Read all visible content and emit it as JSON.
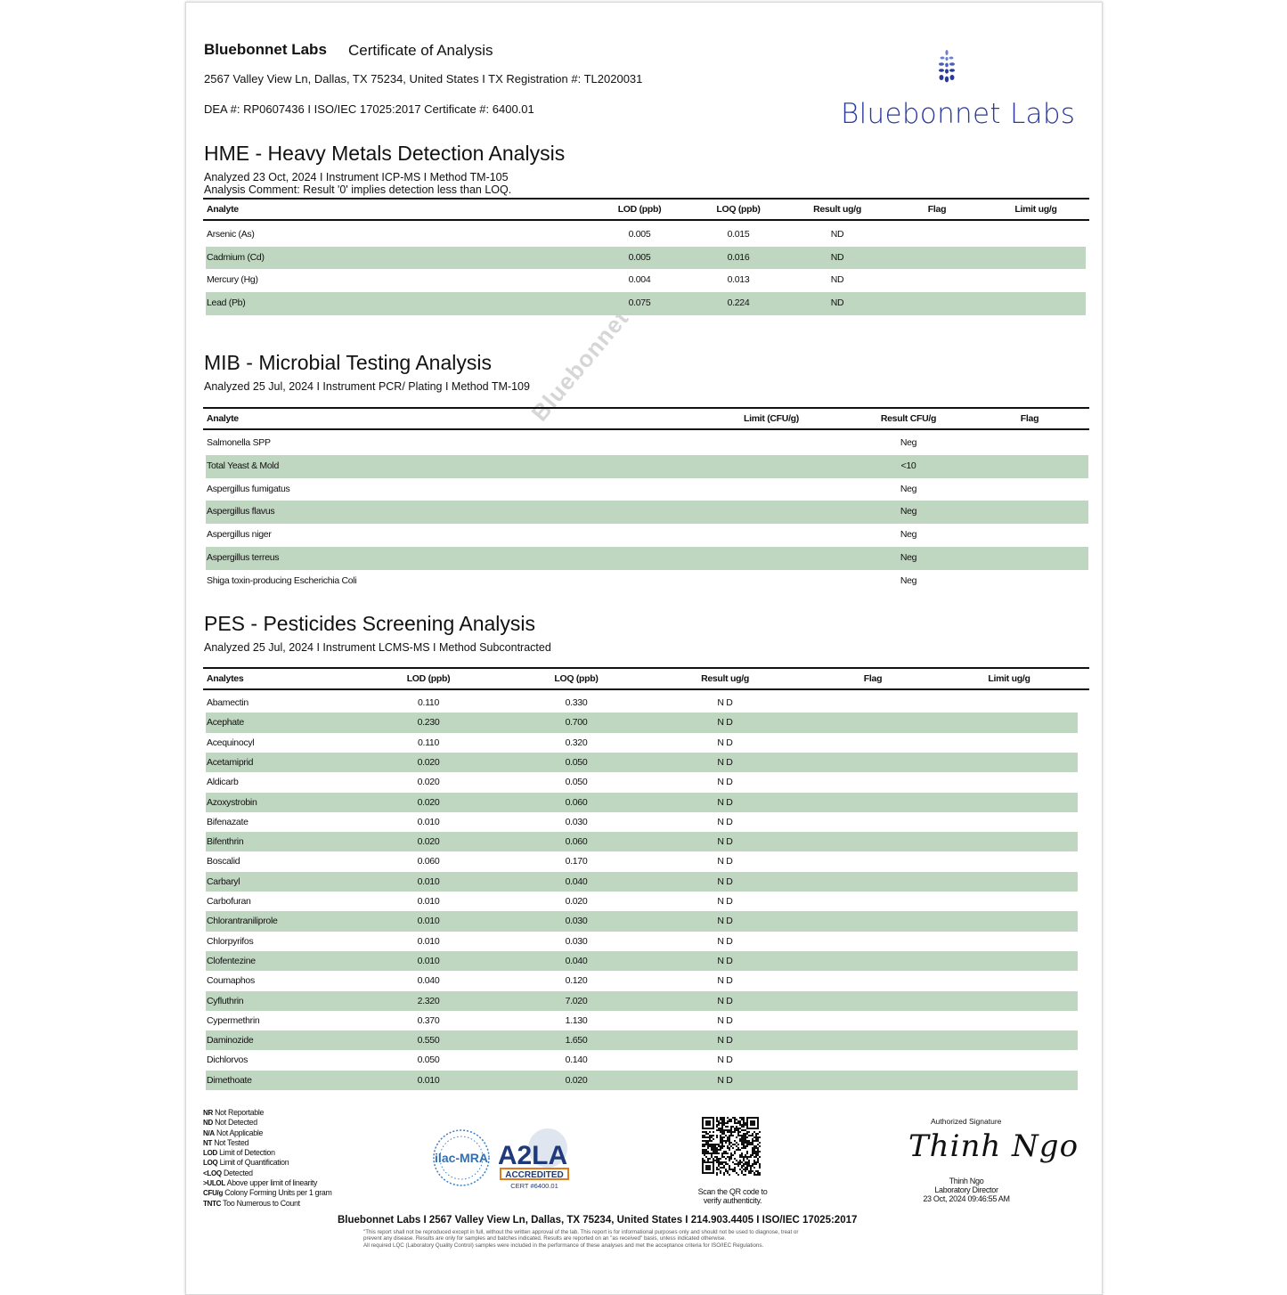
{
  "header": {
    "lab_name": "Bluebonnet Labs",
    "doc_title": "Certificate of Analysis",
    "address_line": "2567 Valley View Ln, Dallas, TX 75234, United States I TX Registration #: TL2020031",
    "dea_line": "DEA #: RP0607436 I ISO/IEC 17025:2017 Certificate #: 6400.01",
    "logo_text": "Bluebonnet Labs"
  },
  "colors": {
    "row_highlight": "#bfd6c0",
    "logo_blue": "#2a3a9c"
  },
  "watermark": "Bluebonnet",
  "hme": {
    "title": "HME - Heavy Metals Detection Analysis",
    "meta": "Analyzed 23 Oct, 2024 I Instrument ICP-MS I Method TM-105",
    "comment": "Analysis Comment: Result '0' implies detection less than LOQ.",
    "columns": [
      "Analyte",
      "LOD (ppb)",
      "LOQ (ppb)",
      "Result ug/g",
      "Flag",
      "Limit ug/g"
    ],
    "rows": [
      [
        "Arsenic (As)",
        "0.005",
        "0.015",
        "ND",
        "",
        ""
      ],
      [
        "Cadmium (Cd)",
        "0.005",
        "0.016",
        "ND",
        "",
        ""
      ],
      [
        "Mercury (Hg)",
        "0.004",
        "0.013",
        "ND",
        "",
        ""
      ],
      [
        "Lead (Pb)",
        "0.075",
        "0.224",
        "ND",
        "",
        ""
      ]
    ]
  },
  "mib": {
    "title": "MIB - Microbial Testing Analysis",
    "meta": "Analyzed 25 Jul, 2024 I Instrument PCR/ Plating I Method TM-109",
    "columns": [
      "Analyte",
      "Limit (CFU/g)",
      "Result CFU/g",
      "Flag"
    ],
    "rows": [
      [
        "Salmonella SPP",
        "",
        "Neg",
        ""
      ],
      [
        "Total Yeast & Mold",
        "",
        "<10",
        ""
      ],
      [
        "Aspergillus fumigatus",
        "",
        "Neg",
        ""
      ],
      [
        "Aspergillus flavus",
        "",
        "Neg",
        ""
      ],
      [
        "Aspergillus niger",
        "",
        "Neg",
        ""
      ],
      [
        "Aspergillus terreus",
        "",
        "Neg",
        ""
      ],
      [
        "Shiga toxin-producing Escherichia Coli",
        "",
        "Neg",
        ""
      ]
    ]
  },
  "pes": {
    "title": "PES - Pesticides Screening Analysis",
    "meta": "Analyzed 25 Jul, 2024 I Instrument LCMS-MS I Method Subcontracted",
    "columns": [
      "Analytes",
      "LOD (ppb)",
      "LOQ (ppb)",
      "Result ug/g",
      "Flag",
      "Limit ug/g"
    ],
    "rows": [
      [
        "Abamectin",
        "0.110",
        "0.330",
        "N D",
        "",
        ""
      ],
      [
        "Acephate",
        "0.230",
        "0.700",
        "N D",
        "",
        ""
      ],
      [
        "Acequinocyl",
        "0.110",
        "0.320",
        "N D",
        "",
        ""
      ],
      [
        "Acetamiprid",
        "0.020",
        "0.050",
        "N D",
        "",
        ""
      ],
      [
        "Aldicarb",
        "0.020",
        "0.050",
        "N D",
        "",
        ""
      ],
      [
        "Azoxystrobin",
        "0.020",
        "0.060",
        "N D",
        "",
        ""
      ],
      [
        "Bifenazate",
        "0.010",
        "0.030",
        "N D",
        "",
        ""
      ],
      [
        "Bifenthrin",
        "0.020",
        "0.060",
        "N D",
        "",
        ""
      ],
      [
        "Boscalid",
        "0.060",
        "0.170",
        "N D",
        "",
        ""
      ],
      [
        "Carbaryl",
        "0.010",
        "0.040",
        "N D",
        "",
        ""
      ],
      [
        "Carbofuran",
        "0.010",
        "0.020",
        "N D",
        "",
        ""
      ],
      [
        "Chlorantraniliprole",
        "0.010",
        "0.030",
        "N D",
        "",
        ""
      ],
      [
        "Chlorpyrifos",
        "0.010",
        "0.030",
        "N D",
        "",
        ""
      ],
      [
        "Clofentezine",
        "0.010",
        "0.040",
        "N D",
        "",
        ""
      ],
      [
        "Coumaphos",
        "0.040",
        "0.120",
        "N D",
        "",
        ""
      ],
      [
        "Cyfluthrin",
        "2.320",
        "7.020",
        "N D",
        "",
        ""
      ],
      [
        "Cypermethrin",
        "0.370",
        "1.130",
        "N D",
        "",
        ""
      ],
      [
        "Daminozide",
        "0.550",
        "1.650",
        "N D",
        "",
        ""
      ],
      [
        "Dichlorvos",
        "0.050",
        "0.140",
        "N D",
        "",
        ""
      ],
      [
        "Dimethoate",
        "0.010",
        "0.020",
        "N D",
        "",
        ""
      ]
    ]
  },
  "legend": [
    [
      "NR",
      "Not Reportable"
    ],
    [
      "ND",
      "Not Detected"
    ],
    [
      "N/A",
      "Not Applicable"
    ],
    [
      "NT",
      "Not Tested"
    ],
    [
      "LOD",
      "Limit of Detection"
    ],
    [
      "LOQ",
      "Limit of Quantification"
    ],
    [
      "<LOQ",
      "Detected"
    ],
    [
      ">ULOL",
      "Above upper limit of linearity"
    ],
    [
      "CFU/g",
      "Colony Forming Units per 1 gram"
    ],
    [
      "TNTC",
      "Too Numerous to Count"
    ]
  ],
  "badges": {
    "ilac": "ilac-MRA",
    "a2la": "A2LA",
    "accredited": "ACCREDITED",
    "cert": "CERT #6400.01"
  },
  "qr": {
    "caption_1": "Scan the QR code to",
    "caption_2": "verify authenticity."
  },
  "signature": {
    "label": "Authorized Signature",
    "script": "Thinh Ngo",
    "name": "Thinh Ngo",
    "role": "Laboratory Director",
    "date": "23 Oct, 2024 09:46:55 AM"
  },
  "footer": {
    "line": "Bluebonnet Labs I 2567 Valley View Ln, Dallas, TX 75234, United States I 214.903.4405 I ISO/IEC 17025:2017",
    "disclaimer_1": "\"This report shall not be reproduced except in full, without the written approval of the lab. This report is for informational purposes only and should not be used to diagnose, treat or",
    "disclaimer_2": "prevent any disease. Results are only for samples and batches indicated. Results are reported on an \"as received\" basis, unless indicated otherwise.",
    "disclaimer_3": "All required LQC (Laboratory Quality Control) samples were included in the performance of these analyses and met the acceptance criteria for ISO/IEC Regulations."
  }
}
